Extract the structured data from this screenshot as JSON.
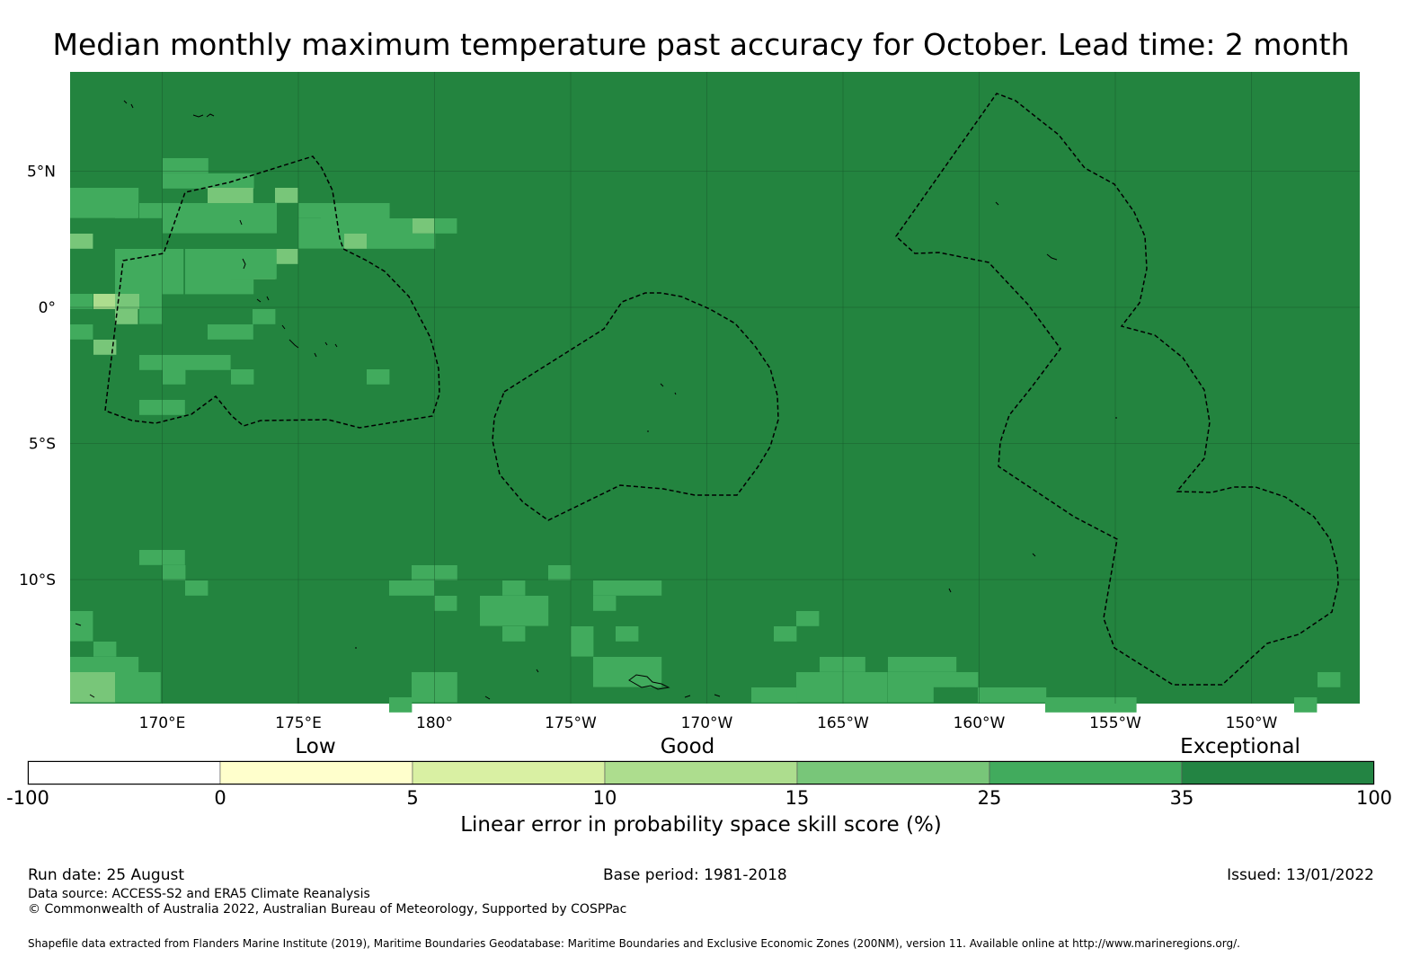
{
  "title": "Median monthly maximum temperature past accuracy for October. Lead time: 2 month",
  "map": {
    "background_color": "#23843F",
    "lat_labels": [
      "5°N",
      "0°",
      "5°S",
      "10°S"
    ],
    "lon_labels": [
      "170°E",
      "175°E",
      "180°",
      "175°W",
      "170°W",
      "165°W",
      "160°W",
      "155°W",
      "150°W"
    ],
    "lat_values": [
      5,
      0,
      -5,
      -10
    ],
    "lon_values": [
      170,
      175,
      180,
      185,
      190,
      195,
      200,
      205,
      210
    ],
    "extent": {
      "lon_min": 166.6,
      "lon_max": 214.0,
      "lat_min": -14.5,
      "lat_max": 8.7
    },
    "regions": [
      "Kiribati Gilbert Islands EEZ",
      "Kiribati Phoenix Islands EEZ",
      "Kiribati Line Islands EEZ"
    ]
  },
  "colorbar": {
    "category_labels": [
      "Low",
      "Good",
      "Exceptional"
    ],
    "tick_labels": [
      "-100",
      "0",
      "5",
      "10",
      "15",
      "25",
      "35",
      "100"
    ],
    "colors": [
      "#FFFFFF",
      "#FFFFCC",
      "#D9F0A3",
      "#ADDD8E",
      "#78C679",
      "#41AB5D",
      "#238443"
    ],
    "label": "Linear error in probability space skill score (%)"
  },
  "footer": {
    "run_date": "Run date: 25 August",
    "base_period": "Base period: 1981-2018",
    "issued": "Issued: 13/01/2022",
    "data_source": "Data source: ACCESS-S2 and ERA5 Climate Reanalysis",
    "copyright": "© Commonwealth of Australia 2022, Australian Bureau of Meteorology, Supported by COSPPac",
    "shapefile": "Shapefile data extracted from Flanders Marine Institute (2019), Maritime Boundaries Geodatabase: Maritime Boundaries and Exclusive Economic Zones (200NM), version 11. Available online at http://www.marineregions.org/."
  }
}
